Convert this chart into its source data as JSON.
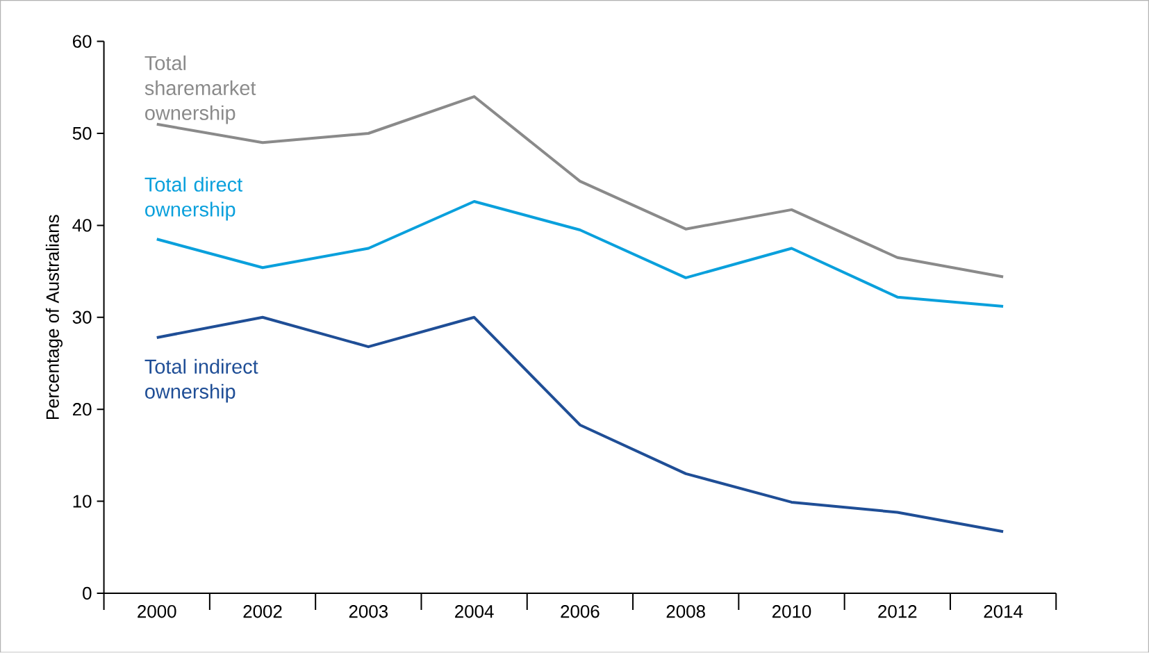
{
  "chart_data": {
    "type": "line",
    "ylabel": "Percentage of Australians",
    "categories": [
      "2000",
      "2002",
      "2003",
      "2004",
      "2006",
      "2008",
      "2010",
      "2012",
      "2014"
    ],
    "ylim": [
      0,
      60
    ],
    "yticks": [
      0,
      10,
      20,
      30,
      40,
      50,
      60
    ],
    "marker": "none",
    "line_style": "solid",
    "series": [
      {
        "name": "Total sharemarket ownership",
        "color": "#8a8a8a",
        "values": [
          51,
          49,
          50,
          54,
          44.8,
          39.6,
          41.7,
          36.5,
          34.4
        ]
      },
      {
        "name": "Total direct ownership",
        "color": "#0aa0dc",
        "values": [
          38.5,
          35.4,
          37.5,
          42.6,
          39.5,
          34.3,
          37.5,
          32.2,
          31.2
        ]
      },
      {
        "name": "Total indirect ownership",
        "color": "#1f4e96",
        "values": [
          27.8,
          30,
          26.8,
          30,
          18.3,
          13,
          9.9,
          8.8,
          6.7
        ]
      }
    ]
  }
}
